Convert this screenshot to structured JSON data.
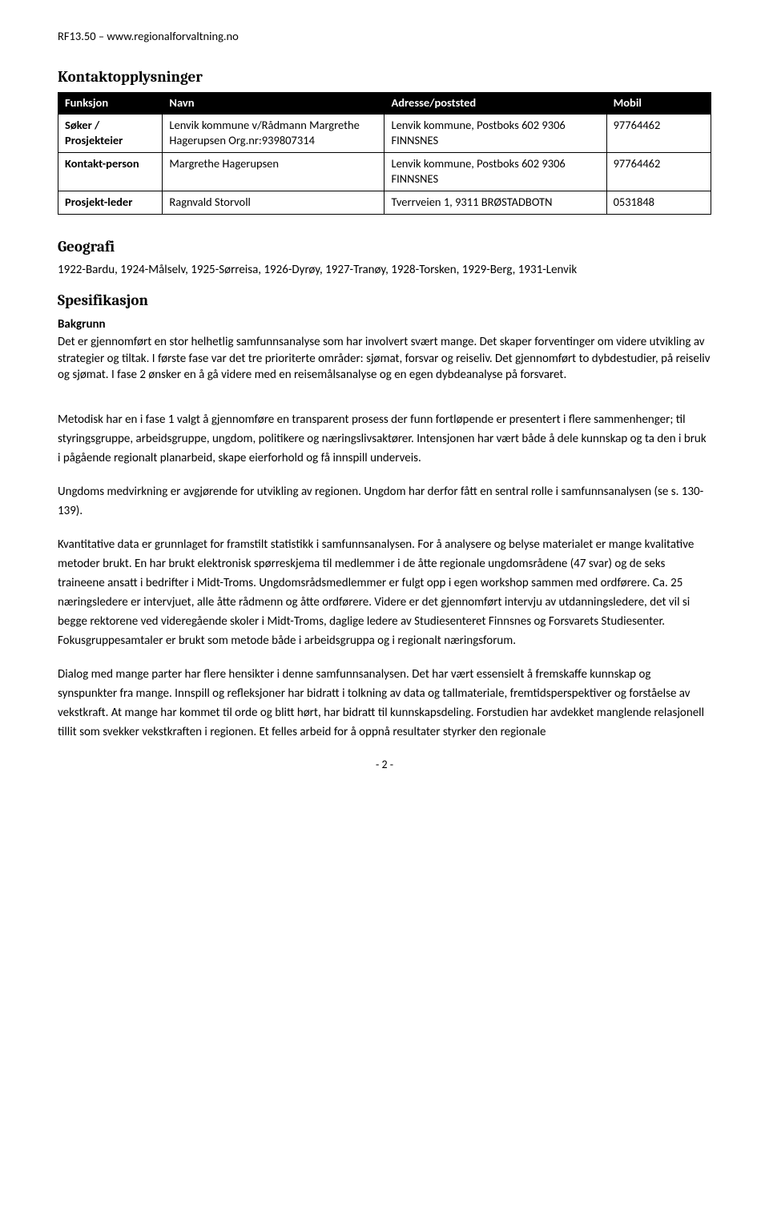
{
  "header_ref": "RF13.50 – www.regionalforvaltning.no",
  "section1_title": "Kontaktopplysninger",
  "contact_table": {
    "headers": [
      "Funksjon",
      "Navn",
      "Adresse/poststed",
      "Mobil"
    ],
    "rows": [
      {
        "funksjon": "Søker / Prosjekteier",
        "navn": "Lenvik kommune v/Rådmann Margrethe Hagerupsen Org.nr:939807314",
        "adresse": "Lenvik kommune, Postboks 602 9306  FINNSNES",
        "mobil": "97764462"
      },
      {
        "funksjon": "Kontakt-person",
        "navn": "Margrethe Hagerupsen",
        "adresse": "Lenvik kommune, Postboks 602 9306  FINNSNES",
        "mobil": "97764462"
      },
      {
        "funksjon": "Prosjekt-leder",
        "navn": "Ragnvald Storvoll",
        "adresse": "Tverrveien 1, 9311  BRØSTADBOTN",
        "mobil": "0531848"
      }
    ]
  },
  "section2_title": "Geografi",
  "geografi_text": "1922-Bardu, 1924-Målselv, 1925-Sørreisa, 1926-Dyrøy, 1927-Tranøy, 1928-Torsken, 1929-Berg, 1931-Lenvik",
  "section3_title": "Spesifikasjon",
  "spes_subhead": "Bakgrunn",
  "para1": "Det er gjennomført en stor helhetlig samfunnsanalyse som har involvert svært mange. Det skaper forventinger om videre utvikling av strategier og tiltak. I første fase var det tre prioriterte områder: sjømat, forsvar og reiseliv. Det gjennomført to dybdestudier, på reiseliv og sjømat. I fase 2 ønsker en å gå videre med en reisemålsanalyse og en egen dybdeanalyse på forsvaret.",
  "para2": "Metodisk har en i fase 1 valgt å gjennomføre en transparent prosess der funn fortløpende er presentert i flere sammenhenger; til styringsgruppe, arbeidsgruppe, ungdom, politikere og næringslivsaktører. Intensjonen har vært både å dele kunnskap og ta den i bruk i pågående regionalt planarbeid, skape eierforhold og få innspill underveis.",
  "para3": "Ungdoms medvirkning er avgjørende for utvikling av regionen. Ungdom har derfor fått en sentral rolle i samfunnsanalysen (se s. 130-139).",
  "para4": "Kvantitative data er grunnlaget for framstilt statistikk i samfunnsanalysen. For å analysere og belyse materialet er mange kvalitative metoder brukt. En har brukt elektronisk spørreskjema til medlemmer i de åtte regionale ungdomsrådene (47 svar) og de seks traineene ansatt i bedrifter i Midt-Troms. Ungdomsrådsmedlemmer er fulgt opp i egen workshop sammen med ordførere. Ca. 25 næringsledere er intervjuet, alle åtte rådmenn og åtte ordførere. Videre er det gjennomført intervju av utdanningsledere, det vil si begge rektorene ved videregående skoler i Midt-Troms, daglige ledere av Studiesenteret Finnsnes og Forsvarets Studiesenter. Fokusgruppesamtaler er brukt som metode både i arbeidsgruppa og i regionalt næringsforum.",
  "para5": "Dialog med mange parter har flere hensikter i denne samfunnsanalysen. Det har vært essensielt å fremskaffe kunnskap og synspunkter fra mange. Innspill og refleksjoner har bidratt i tolkning av data og tallmateriale, fremtidsperspektiver og forståelse av vekstkraft. At mange har kommet til orde og blitt hørt, har bidratt til kunnskapsdeling. Forstudien har avdekket manglende relasjonell tillit som svekker vekstkraften i regionen. Et felles arbeid for å oppnå resultater styrker den regionale",
  "page_number": "- 2 -",
  "colors": {
    "text": "#000000",
    "bg": "#ffffff",
    "table_header_bg": "#000000",
    "table_header_text": "#ffffff"
  }
}
